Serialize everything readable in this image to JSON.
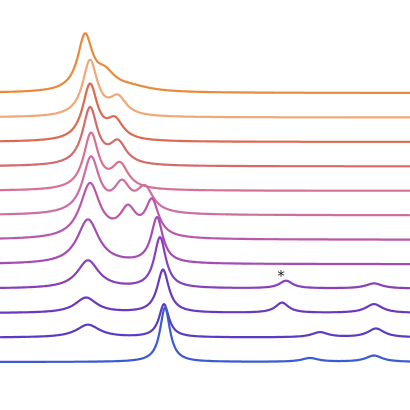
{
  "chart_data": {
    "type": "line",
    "title": "",
    "xlabel": "",
    "ylabel": "",
    "grid": false,
    "legend": "none",
    "xlim": [
      0,
      410
    ],
    "ylim": [
      0,
      1
    ],
    "offset_step": 0.0965,
    "series": [
      {
        "color": "#e88a3c",
        "peaks": [
          [
            85,
            0.215,
            9
          ],
          [
            105,
            0.06,
            12
          ],
          [
            130,
            0.02,
            25
          ]
        ]
      },
      {
        "color": "#f0a878",
        "peaks": [
          [
            90,
            0.22,
            9
          ],
          [
            118,
            0.07,
            10
          ]
        ]
      },
      {
        "color": "#dc6a50",
        "peaks": [
          [
            90,
            0.22,
            9
          ],
          [
            115,
            0.075,
            10
          ]
        ]
      },
      {
        "color": "#d46a6a",
        "peaks": [
          [
            90,
            0.225,
            9
          ],
          [
            118,
            0.085,
            10
          ]
        ]
      },
      {
        "color": "#d97090",
        "peaks": [
          [
            91,
            0.22,
            9
          ],
          [
            120,
            0.095,
            10
          ]
        ]
      },
      {
        "color": "#cc6ea0",
        "peaks": [
          [
            91,
            0.22,
            10
          ],
          [
            122,
            0.105,
            10
          ],
          [
            145,
            0.095,
            10
          ]
        ]
      },
      {
        "color": "#b858a8",
        "peaks": [
          [
            90,
            0.215,
            12
          ],
          [
            128,
            0.105,
            10
          ],
          [
            152,
            0.14,
            8
          ]
        ]
      },
      {
        "color": "#a44cb4",
        "peaks": [
          [
            88,
            0.175,
            13
          ],
          [
            157,
            0.18,
            7
          ]
        ]
      },
      {
        "color": "#8840b8",
        "peaks": [
          [
            88,
            0.11,
            13
          ],
          [
            160,
            0.2,
            7
          ],
          [
            286,
            0.03,
            8
          ],
          [
            374,
            0.02,
            10
          ]
        ]
      },
      {
        "color": "#6a38bc",
        "peaks": [
          [
            86,
            0.06,
            13
          ],
          [
            163,
            0.17,
            7
          ],
          [
            282,
            0.04,
            8
          ],
          [
            374,
            0.035,
            10
          ]
        ]
      },
      {
        "color": "#5a3cc4",
        "peaks": [
          [
            88,
            0.05,
            14
          ],
          [
            164,
            0.13,
            6
          ],
          [
            320,
            0.02,
            10
          ],
          [
            376,
            0.035,
            10
          ]
        ]
      },
      {
        "color": "#3c5ad2",
        "peaks": [
          [
            165,
            0.215,
            6
          ],
          [
            310,
            0.015,
            10
          ],
          [
            374,
            0.025,
            10
          ]
        ]
      }
    ],
    "annotations": [
      {
        "text": "*",
        "x": 281,
        "series_index": 8
      }
    ]
  }
}
